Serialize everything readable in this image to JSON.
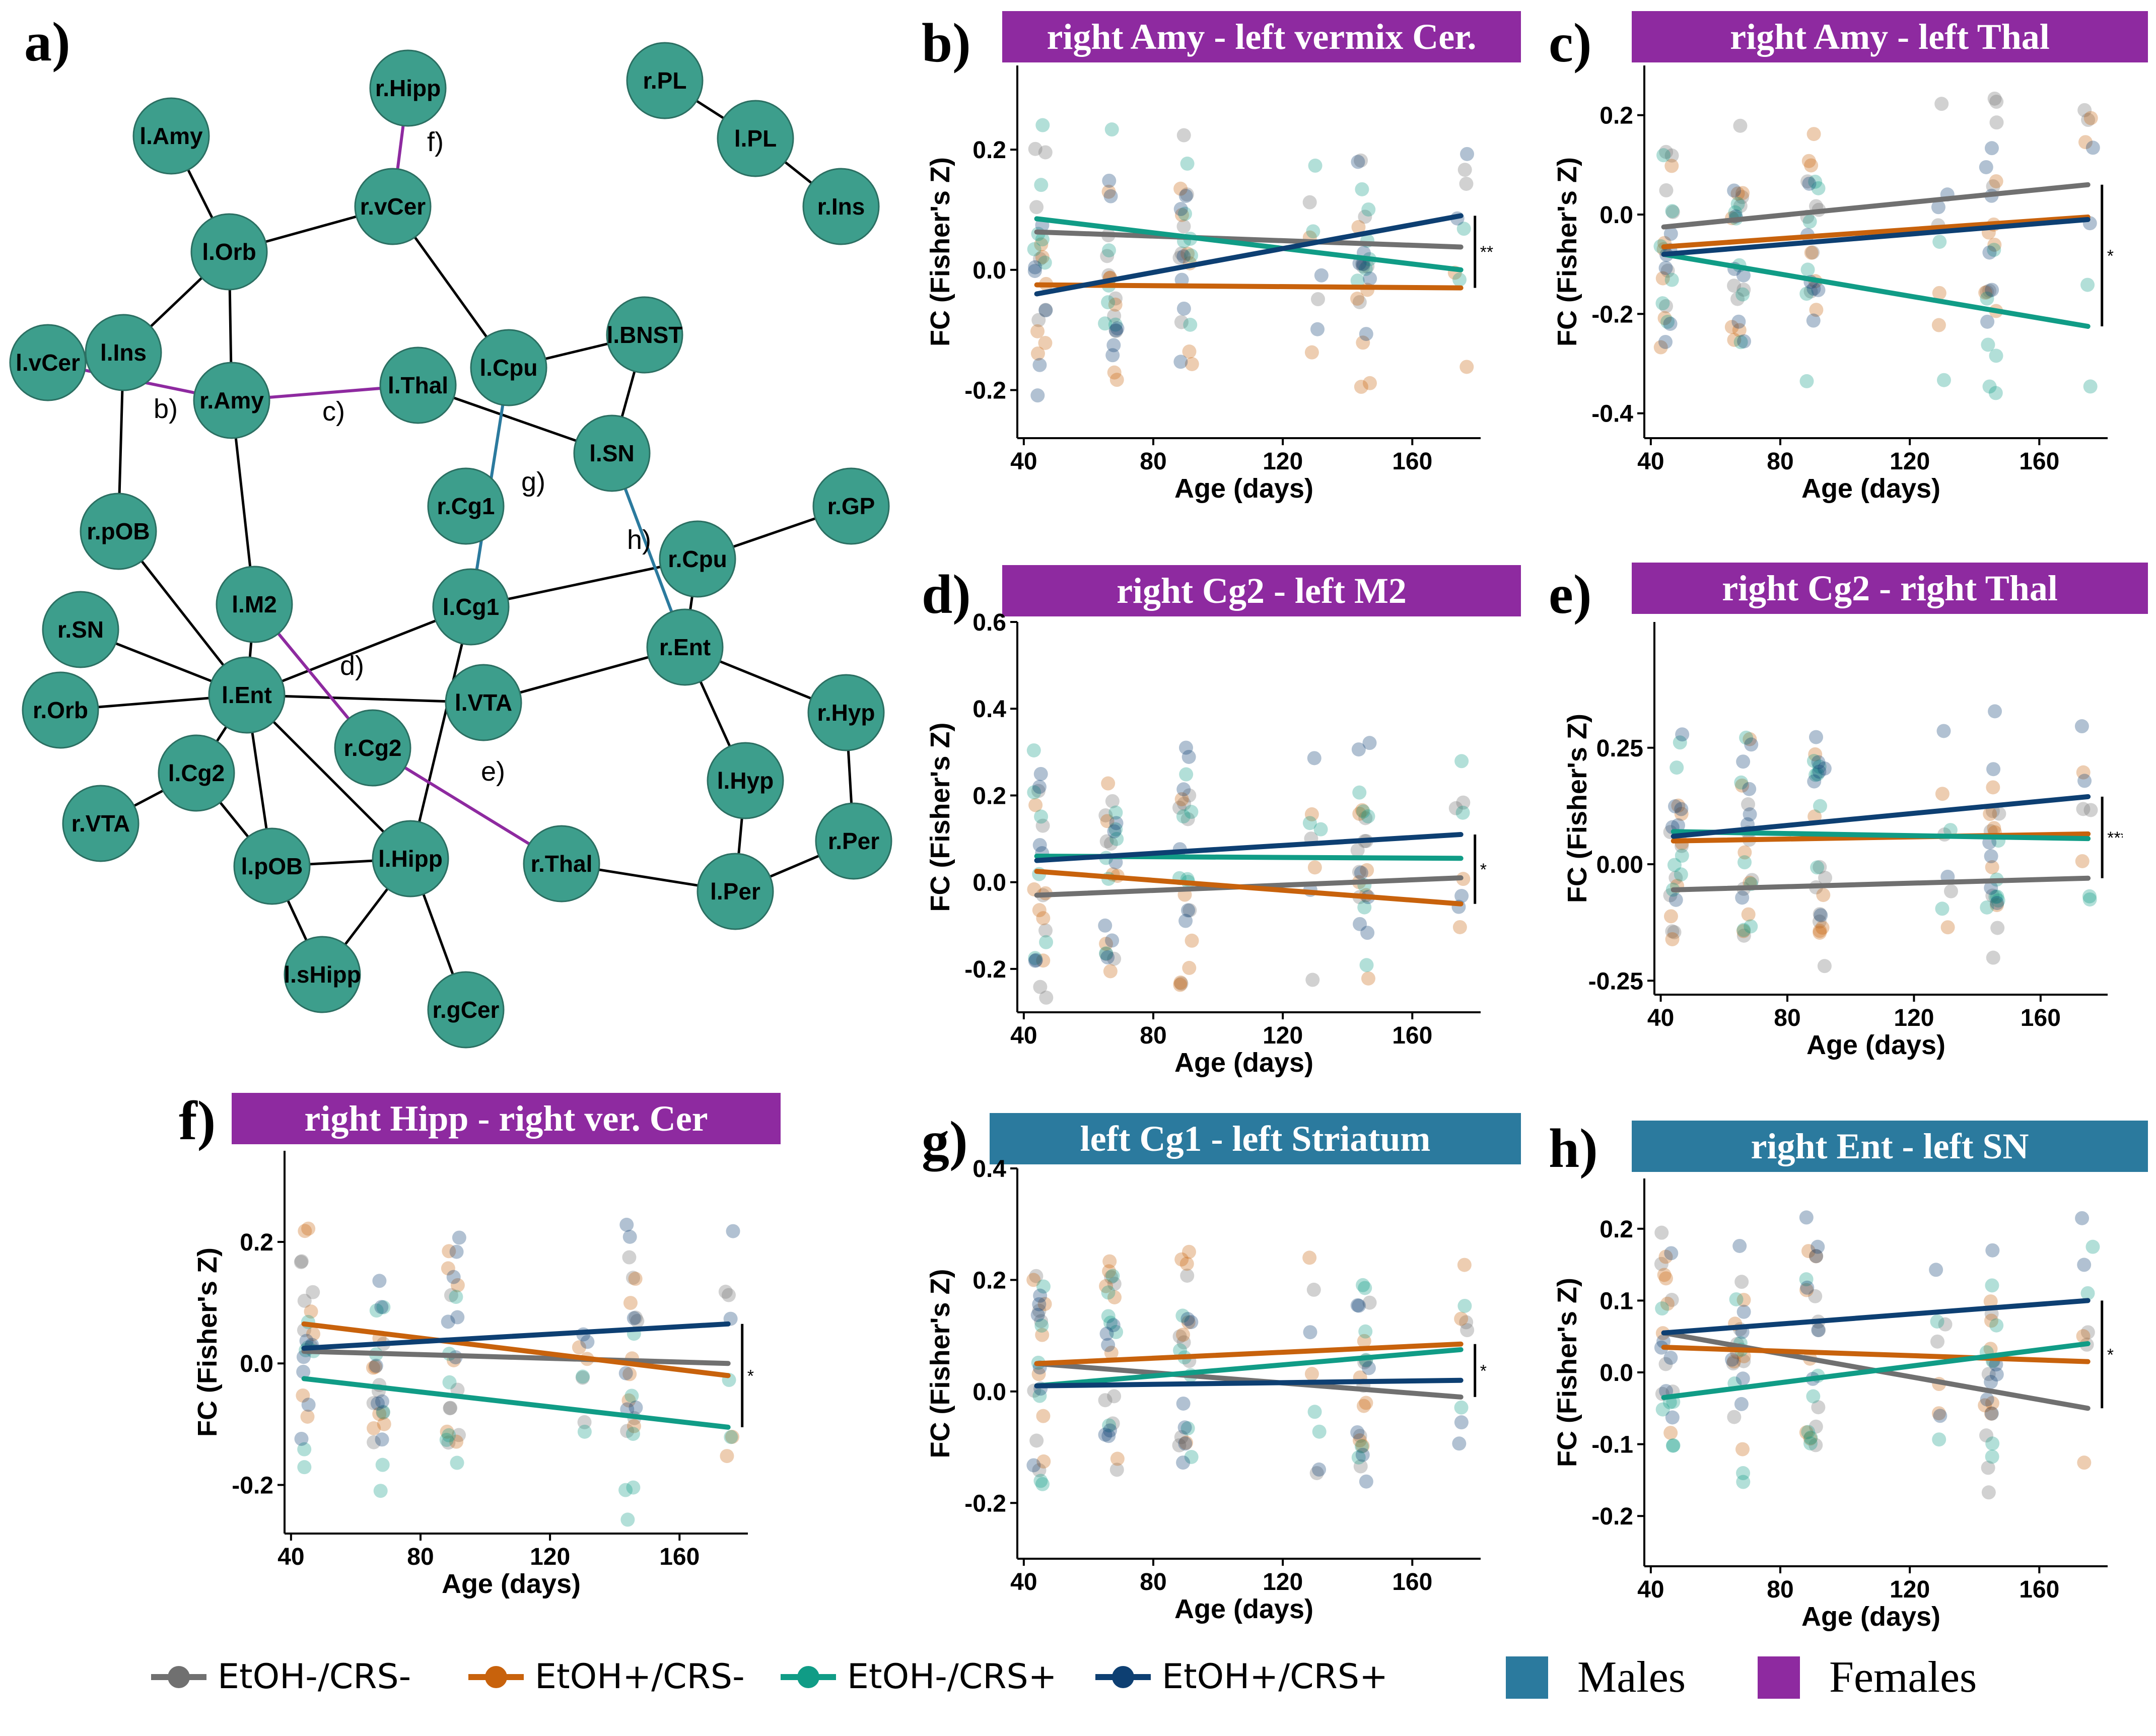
{
  "network": {
    "letter": "a)",
    "node_color": "#3d9e8c",
    "male_edge_color": "#2b7a9e",
    "female_edge_color": "#8e2aa0",
    "nodes": [
      {
        "id": "rHipp",
        "label": "r.Hipp"
      },
      {
        "id": "lAmy",
        "label": "l.Amy"
      },
      {
        "id": "rPL",
        "label": "r.PL"
      },
      {
        "id": "lPL",
        "label": "l.PL"
      },
      {
        "id": "rIns",
        "label": "r.Ins"
      },
      {
        "id": "lOrb",
        "label": "l.Orb"
      },
      {
        "id": "rvCer",
        "label": "r.vCer"
      },
      {
        "id": "lvCer",
        "label": "l.vCer"
      },
      {
        "id": "lIns",
        "label": "l.Ins"
      },
      {
        "id": "rAmy",
        "label": "r.Amy"
      },
      {
        "id": "lThal",
        "label": "l.Thal"
      },
      {
        "id": "lCpu",
        "label": "l.Cpu"
      },
      {
        "id": "lBNST",
        "label": "l.BNST"
      },
      {
        "id": "lSN",
        "label": "l.SN"
      },
      {
        "id": "rCg1",
        "label": "r.Cg1"
      },
      {
        "id": "rGP",
        "label": "r.GP"
      },
      {
        "id": "rpOB",
        "label": "r.pOB"
      },
      {
        "id": "rCpu",
        "label": "r.Cpu"
      },
      {
        "id": "rSN",
        "label": "r.SN"
      },
      {
        "id": "lM2",
        "label": "l.M2"
      },
      {
        "id": "lCg1",
        "label": "l.Cg1"
      },
      {
        "id": "rEnt",
        "label": "r.Ent"
      },
      {
        "id": "rOrb",
        "label": "r.Orb"
      },
      {
        "id": "lEnt",
        "label": "l.Ent"
      },
      {
        "id": "lVTA",
        "label": "l.VTA"
      },
      {
        "id": "rHyp",
        "label": "r.Hyp"
      },
      {
        "id": "rCg2",
        "label": "r.Cg2"
      },
      {
        "id": "lCg2",
        "label": "l.Cg2"
      },
      {
        "id": "lHyp",
        "label": "l.Hyp"
      },
      {
        "id": "rVTA",
        "label": "r.VTA"
      },
      {
        "id": "rPer",
        "label": "r.Per"
      },
      {
        "id": "lpOB",
        "label": "l.pOB"
      },
      {
        "id": "lHipp",
        "label": "l.Hipp"
      },
      {
        "id": "rThal",
        "label": "r.Thal"
      },
      {
        "id": "lPer",
        "label": "l.Per"
      },
      {
        "id": "lsHipp",
        "label": "l.sHipp"
      },
      {
        "id": "rgCer",
        "label": "r.gCer"
      }
    ],
    "edges": [
      {
        "a": "rPL",
        "b": "lPL",
        "type": "black"
      },
      {
        "a": "lPL",
        "b": "rIns",
        "type": "black"
      },
      {
        "a": "lAmy",
        "b": "lOrb",
        "type": "black"
      },
      {
        "a": "lOrb",
        "b": "rvCer",
        "type": "black"
      },
      {
        "a": "lOrb",
        "b": "lIns",
        "type": "black"
      },
      {
        "a": "lOrb",
        "b": "rAmy",
        "type": "black"
      },
      {
        "a": "rvCer",
        "b": "lCpu",
        "type": "black"
      },
      {
        "a": "lCpu",
        "b": "lBNST",
        "type": "black"
      },
      {
        "a": "lThal",
        "b": "lSN",
        "type": "black"
      },
      {
        "a": "lBNST",
        "b": "lSN",
        "type": "black"
      },
      {
        "a": "lIns",
        "b": "rpOB",
        "type": "black"
      },
      {
        "a": "rAmy",
        "b": "lM2",
        "type": "black"
      },
      {
        "a": "rpOB",
        "b": "lEnt",
        "type": "black"
      },
      {
        "a": "rSN",
        "b": "lEnt",
        "type": "black"
      },
      {
        "a": "rOrb",
        "b": "lEnt",
        "type": "black"
      },
      {
        "a": "lEnt",
        "b": "lM2",
        "type": "black"
      },
      {
        "a": "lEnt",
        "b": "lCg1",
        "type": "black"
      },
      {
        "a": "lEnt",
        "b": "lVTA",
        "type": "black"
      },
      {
        "a": "lEnt",
        "b": "lCg2",
        "type": "black"
      },
      {
        "a": "lEnt",
        "b": "lpOB",
        "type": "black"
      },
      {
        "a": "lEnt",
        "b": "lHipp",
        "type": "black"
      },
      {
        "a": "lCg2",
        "b": "rVTA",
        "type": "black"
      },
      {
        "a": "lCg2",
        "b": "lpOB",
        "type": "black"
      },
      {
        "a": "lCg1",
        "b": "rCpu",
        "type": "black"
      },
      {
        "a": "lCg1",
        "b": "lHipp",
        "type": "black"
      },
      {
        "a": "lVTA",
        "b": "rEnt",
        "type": "black"
      },
      {
        "a": "rCpu",
        "b": "rGP",
        "type": "black"
      },
      {
        "a": "rCpu",
        "b": "rEnt",
        "type": "black"
      },
      {
        "a": "rEnt",
        "b": "rHyp",
        "type": "black"
      },
      {
        "a": "rEnt",
        "b": "lHyp",
        "type": "black"
      },
      {
        "a": "rHyp",
        "b": "rPer",
        "type": "black"
      },
      {
        "a": "lHyp",
        "b": "lPer",
        "type": "black"
      },
      {
        "a": "rPer",
        "b": "lPer",
        "type": "black"
      },
      {
        "a": "rThal",
        "b": "lPer",
        "type": "black"
      },
      {
        "a": "lpOB",
        "b": "lHipp",
        "type": "black"
      },
      {
        "a": "lpOB",
        "b": "lsHipp",
        "type": "black"
      },
      {
        "a": "lHipp",
        "b": "lsHipp",
        "type": "black"
      },
      {
        "a": "lHipp",
        "b": "rgCer",
        "type": "black"
      },
      {
        "a": "rHipp",
        "b": "rvCer",
        "type": "female",
        "tag": "f)"
      },
      {
        "a": "lvCer",
        "b": "rAmy",
        "type": "female",
        "tag": "b)"
      },
      {
        "a": "rAmy",
        "b": "lThal",
        "type": "female",
        "tag": "c)"
      },
      {
        "a": "lM2",
        "b": "rCg2",
        "type": "female",
        "tag": "d)"
      },
      {
        "a": "rCg2",
        "b": "rThal",
        "type": "female",
        "tag": "e)"
      },
      {
        "a": "lCpu",
        "b": "lCg1",
        "type": "male",
        "tag": "g)"
      },
      {
        "a": "lSN",
        "b": "rEnt",
        "type": "male",
        "tag": "h)"
      }
    ]
  },
  "groups": [
    {
      "name": "EtOH-/CRS-",
      "color": "#707070"
    },
    {
      "name": "EtOH+/CRS-",
      "color": "#c8620c"
    },
    {
      "name": "EtOH-/CRS+",
      "color": "#109c86"
    },
    {
      "name": "EtOH+/CRS+",
      "color": "#0d3f72"
    }
  ],
  "sex_legend": [
    {
      "label": "Males",
      "color": "#2b7a9e"
    },
    {
      "label": "Females",
      "color": "#8e2aa0"
    }
  ],
  "chart_data": [
    {
      "id": "b",
      "letter": "b)",
      "type": "scatter",
      "title": "right Amy - left vermix Cer.",
      "sex": "Females",
      "title_color": "#8e2aa0",
      "xlabel": "Age (days)",
      "ylabel": "FC (Fisher's Z)",
      "xlim": [
        38,
        178
      ],
      "ylim": [
        -0.28,
        0.34
      ],
      "xticks": [
        40,
        80,
        120,
        160
      ],
      "yticks": [
        -0.2,
        0.0,
        0.2
      ],
      "ytick_labels": [
        "-0.2",
        "0.0",
        "0.2"
      ],
      "lines": [
        {
          "group": "EtOH-/CRS-",
          "y0": 0.063,
          "y1": 0.038
        },
        {
          "group": "EtOH+/CRS-",
          "y0": -0.025,
          "y1": -0.03
        },
        {
          "group": "EtOH-/CRS+",
          "y0": 0.085,
          "y1": 0.0
        },
        {
          "group": "EtOH+/CRS+",
          "y0": -0.04,
          "y1": 0.09
        }
      ],
      "sig": "**"
    },
    {
      "id": "c",
      "letter": "c)",
      "type": "scatter",
      "title": "right Amy - left Thal",
      "sex": "Females",
      "title_color": "#8e2aa0",
      "xlabel": "Age (days)",
      "ylabel": "FC (Fisher's Z)",
      "xlim": [
        38,
        178
      ],
      "ylim": [
        -0.45,
        0.3
      ],
      "xticks": [
        40,
        80,
        120,
        160
      ],
      "yticks": [
        -0.4,
        -0.2,
        0.0,
        0.2
      ],
      "ytick_labels": [
        "-0.4",
        "-0.2",
        "0.0",
        "0.2"
      ],
      "lines": [
        {
          "group": "EtOH-/CRS-",
          "y0": -0.025,
          "y1": 0.06
        },
        {
          "group": "EtOH+/CRS-",
          "y0": -0.065,
          "y1": -0.005
        },
        {
          "group": "EtOH-/CRS+",
          "y0": -0.08,
          "y1": -0.225
        },
        {
          "group": "EtOH+/CRS+",
          "y0": -0.08,
          "y1": -0.01
        }
      ],
      "sig": "*"
    },
    {
      "id": "d",
      "letter": "d)",
      "type": "scatter",
      "title": "right Cg2 - left M2",
      "sex": "Females",
      "title_color": "#8e2aa0",
      "xlabel": "Age (days)",
      "ylabel": "FC (Fisher's Z)",
      "xlim": [
        38,
        178
      ],
      "ylim": [
        -0.3,
        0.6
      ],
      "xticks": [
        40,
        80,
        120,
        160
      ],
      "yticks": [
        -0.2,
        0.0,
        0.2,
        0.4,
        0.6
      ],
      "ytick_labels": [
        "-0.2",
        "0.0",
        "0.2",
        "0.4",
        "0.6"
      ],
      "lines": [
        {
          "group": "EtOH-/CRS-",
          "y0": -0.03,
          "y1": 0.01
        },
        {
          "group": "EtOH+/CRS-",
          "y0": 0.025,
          "y1": -0.05
        },
        {
          "group": "EtOH-/CRS+",
          "y0": 0.06,
          "y1": 0.055
        },
        {
          "group": "EtOH+/CRS+",
          "y0": 0.05,
          "y1": 0.11
        }
      ],
      "sig": "*"
    },
    {
      "id": "e",
      "letter": "e)",
      "type": "scatter",
      "title": "right Cg2 - right Thal",
      "sex": "Females",
      "title_color": "#8e2aa0",
      "xlabel": "Age (days)",
      "ylabel": "FC (Fisher's Z)",
      "xlim": [
        38,
        178
      ],
      "ylim": [
        -0.28,
        0.52
      ],
      "xticks": [
        40,
        80,
        120,
        160
      ],
      "yticks": [
        -0.25,
        0.0,
        0.25
      ],
      "ytick_labels": [
        "-0.25",
        "0.00",
        "0.25"
      ],
      "lines": [
        {
          "group": "EtOH-/CRS-",
          "y0": -0.055,
          "y1": -0.03
        },
        {
          "group": "EtOH+/CRS-",
          "y0": 0.05,
          "y1": 0.065
        },
        {
          "group": "EtOH-/CRS+",
          "y0": 0.07,
          "y1": 0.055
        },
        {
          "group": "EtOH+/CRS+",
          "y0": 0.06,
          "y1": 0.145
        }
      ],
      "sig": "***"
    },
    {
      "id": "f",
      "letter": "f)",
      "type": "scatter",
      "title": "right Hipp - right ver. Cer",
      "sex": "Females",
      "title_color": "#8e2aa0",
      "xlabel": "Age (days)",
      "ylabel": "FC (Fisher's Z)",
      "xlim": [
        38,
        178
      ],
      "ylim": [
        -0.28,
        0.35
      ],
      "xticks": [
        40,
        80,
        120,
        160
      ],
      "yticks": [
        -0.2,
        0.0,
        0.2
      ],
      "ytick_labels": [
        "-0.2",
        "0.0",
        "0.2"
      ],
      "lines": [
        {
          "group": "EtOH-/CRS-",
          "y0": 0.02,
          "y1": 0.0
        },
        {
          "group": "EtOH+/CRS-",
          "y0": 0.065,
          "y1": -0.02
        },
        {
          "group": "EtOH-/CRS+",
          "y0": -0.025,
          "y1": -0.105
        },
        {
          "group": "EtOH+/CRS+",
          "y0": 0.025,
          "y1": 0.065
        }
      ],
      "sig": "*"
    },
    {
      "id": "g",
      "letter": "g)",
      "type": "scatter",
      "title": "left Cg1 - left Striatum",
      "sex": "Males",
      "title_color": "#2b7a9e",
      "xlabel": "Age (days)",
      "ylabel": "FC (Fisher's Z)",
      "xlim": [
        38,
        178
      ],
      "ylim": [
        -0.3,
        0.4
      ],
      "xticks": [
        40,
        80,
        120,
        160
      ],
      "yticks": [
        -0.2,
        0.0,
        0.2,
        0.4
      ],
      "ytick_labels": [
        "-0.2",
        "0.0",
        "0.2",
        "0.4"
      ],
      "lines": [
        {
          "group": "EtOH-/CRS-",
          "y0": 0.05,
          "y1": -0.01
        },
        {
          "group": "EtOH+/CRS-",
          "y0": 0.05,
          "y1": 0.085
        },
        {
          "group": "EtOH-/CRS+",
          "y0": 0.01,
          "y1": 0.075
        },
        {
          "group": "EtOH+/CRS+",
          "y0": 0.01,
          "y1": 0.02
        }
      ],
      "sig": "*"
    },
    {
      "id": "h",
      "letter": "h)",
      "type": "scatter",
      "title": "right Ent - left SN",
      "sex": "Males",
      "title_color": "#2b7a9e",
      "xlabel": "Age (days)",
      "ylabel": "FC (Fisher's Z)",
      "xlim": [
        38,
        178
      ],
      "ylim": [
        -0.27,
        0.27
      ],
      "xticks": [
        40,
        80,
        120,
        160
      ],
      "yticks": [
        -0.2,
        -0.1,
        0.0,
        0.1,
        0.2
      ],
      "ytick_labels": [
        "-0.2",
        "-0.1",
        "0.0",
        "0.1",
        "0.2"
      ],
      "lines": [
        {
          "group": "EtOH-/CRS-",
          "y0": 0.055,
          "y1": -0.05
        },
        {
          "group": "EtOH+/CRS-",
          "y0": 0.035,
          "y1": 0.015
        },
        {
          "group": "EtOH-/CRS+",
          "y0": -0.035,
          "y1": 0.04
        },
        {
          "group": "EtOH+/CRS+",
          "y0": 0.055,
          "y1": 0.1
        }
      ],
      "sig": "*"
    }
  ]
}
